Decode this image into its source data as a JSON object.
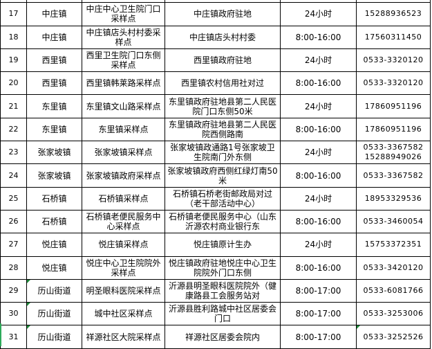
{
  "rows": [
    {
      "no": "16",
      "town": "",
      "site": "",
      "address": "",
      "hours": "",
      "phone": ""
    },
    {
      "no": "17",
      "town": "中庄镇",
      "site": "中庄中心卫生院门口采样点",
      "address": "中庄镇政府驻地",
      "hours": "24小时",
      "phone": "15288936523"
    },
    {
      "no": "18",
      "town": "中庄镇",
      "site": "中庄镇店头村村委采样点",
      "address": "中庄镇店头村村委",
      "hours": "8:00-16:00",
      "phone": "17560311450"
    },
    {
      "no": "19",
      "town": "西里镇",
      "site": "西里卫生院门口东侧采样点",
      "address": "西里镇政府驻地",
      "hours": "24小时",
      "phone": "0533-3320120"
    },
    {
      "no": "20",
      "town": "西里镇",
      "site": "西里镇韩莱路采样点",
      "address": "西里镇农村信用社对过",
      "hours": "8:00-16:00",
      "phone": "0533-3320120"
    },
    {
      "no": "21",
      "town": "东里镇",
      "site": "东里镇文山路采样点",
      "address": "东里镇政府驻地县第二人民医院门口东侧50米",
      "hours": "24小时",
      "phone": "17860951196"
    },
    {
      "no": "22",
      "town": "东里镇",
      "site": "东里镇采样点",
      "address": "东里镇政府驻地县第二人民医院西侧路南",
      "hours": "8:00-16:00",
      "phone": "17860951196"
    },
    {
      "no": "23",
      "town": "张家坡镇",
      "site": "张家坡镇采样点",
      "address": "张家坡镇政通路1号张家坡卫生院南门外东侧",
      "hours": "24小时",
      "phone": "0533-3367582 15288949026"
    },
    {
      "no": "24",
      "town": "张家坡镇",
      "site": "张家坡镇政府采样点",
      "address": "张家坡镇政府西侧红绿灯南50米",
      "hours": "8:00-16:00",
      "phone": "0533-3367582"
    },
    {
      "no": "25",
      "town": "石桥镇",
      "site": "石桥镇采样点",
      "address": "石桥镇石桥老街邮政局对过（老干部活动中心）",
      "hours": "24小时",
      "phone": "18953329536"
    },
    {
      "no": "26",
      "town": "石桥镇",
      "site": "石桥镇老便民服务中心采样点",
      "address": "石桥镇老便民服务中心（山东沂源农村商业银行东",
      "hours": "8:00-16:00",
      "phone": "0533-3460054"
    },
    {
      "no": "27",
      "town": "悦庄镇",
      "site": "悦庄镇采样点",
      "address": "悦庄镇原计生办",
      "hours": "24小时",
      "phone": "15753372351"
    },
    {
      "no": "28",
      "town": "悦庄镇",
      "site": "悦庄中心卫生院院外采样点",
      "address": "悦庄镇政府驻地悦庄中心卫生院院外门口东侧",
      "hours": "8:00-16:00",
      "phone": "0533-3420120"
    },
    {
      "no": "29",
      "town": "历山街道",
      "site": "明圣眼科医院采样点",
      "address": "沂源县明圣眼科医院院外（健康路县工会服务站对",
      "hours": "8:00-17:00",
      "phone": "0533-6081766"
    },
    {
      "no": "30",
      "town": "历山街道",
      "site": "城中社区采样点",
      "address": "沂源县胜利路城中社区居委会门口",
      "hours": "8:00-17:00",
      "phone": "0533-3253006"
    },
    {
      "no": "31",
      "town": "历山街道",
      "site": "祥源社区大院采样点",
      "address": "祥源社区居委会院内",
      "hours": "8:00-17:00",
      "phone": "0533-3252526"
    }
  ],
  "colors": {
    "grid": "#000000",
    "comment_marker": "#1f8a3a"
  }
}
